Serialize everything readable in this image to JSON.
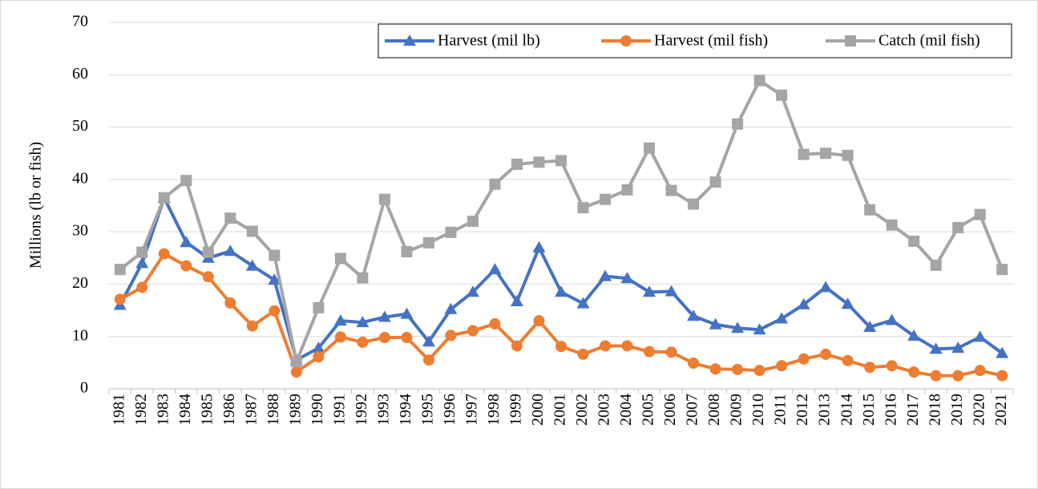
{
  "chart_data": {
    "type": "line",
    "y_label": "Millions (lb or fish)",
    "categories": [
      "1981",
      "1982",
      "1983",
      "1984",
      "1985",
      "1986",
      "1987",
      "1988",
      "1989",
      "1990",
      "1991",
      "1992",
      "1993",
      "1994",
      "1995",
      "1996",
      "1997",
      "1998",
      "1999",
      "2000",
      "2001",
      "2002",
      "2003",
      "2004",
      "2005",
      "2006",
      "2007",
      "2008",
      "2009",
      "2010",
      "2011",
      "2012",
      "2013",
      "2014",
      "2015",
      "2016",
      "2017",
      "2018",
      "2019",
      "2020",
      "2021"
    ],
    "series": [
      {
        "name": "Harvest (mil lb)",
        "color": "#4472c4",
        "marker": "triangle",
        "values": [
          16,
          24,
          36.5,
          28,
          25,
          26.3,
          23.5,
          20.8,
          5.5,
          7.8,
          13,
          12.7,
          13.7,
          14.3,
          9,
          15.2,
          18.5,
          22.8,
          16.7,
          27,
          18.5,
          16.3,
          21.5,
          21.1,
          18.5,
          18.6,
          13.9,
          12.3,
          11.6,
          11.3,
          13.4,
          16.1,
          19.4,
          16.2,
          11.8,
          13.1,
          10.1,
          7.6,
          7.8,
          9.9,
          6.8
        ]
      },
      {
        "name": "Harvest (mil fish)",
        "color": "#ed7d31",
        "marker": "circle",
        "values": [
          17.1,
          19.4,
          25.8,
          23.5,
          21.4,
          16.4,
          12,
          14.9,
          3.2,
          6.1,
          9.9,
          8.9,
          9.8,
          9.8,
          5.5,
          10.2,
          11.1,
          12.4,
          8.2,
          13,
          8.1,
          6.6,
          8.2,
          8.2,
          7.1,
          7,
          4.9,
          3.8,
          3.7,
          3.5,
          4.4,
          5.7,
          6.6,
          5.4,
          4.1,
          4.4,
          3.2,
          2.5,
          2.5,
          3.5,
          2.5
        ]
      },
      {
        "name": "Catch (mil fish)",
        "color": "#a5a5a5",
        "marker": "square",
        "values": [
          22.8,
          26.1,
          36.5,
          39.8,
          26.1,
          32.6,
          30.1,
          25.5,
          5.2,
          15.5,
          24.9,
          21.2,
          36.2,
          26.2,
          27.9,
          29.9,
          32,
          39.1,
          42.9,
          43.3,
          43.6,
          34.6,
          36.2,
          38,
          46,
          37.9,
          35.3,
          39.5,
          50.6,
          58.9,
          56.1,
          44.8,
          45,
          44.6,
          34.2,
          31.3,
          28.2,
          23.6,
          30.8,
          33.3,
          22.8
        ]
      }
    ],
    "ylim": [
      0,
      70
    ],
    "yticks": [
      0,
      10,
      20,
      30,
      40,
      50,
      60,
      70
    ],
    "grid": true,
    "legend": "top-right"
  }
}
